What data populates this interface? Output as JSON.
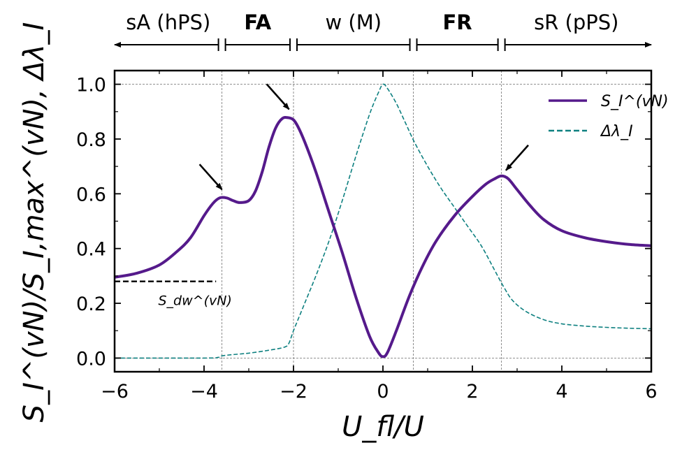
{
  "chart_data": {
    "type": "line",
    "xlabel": "U_fl/U",
    "ylabel": "S_I^(vN)/S_I,max^(vN), Δλ_I",
    "xlim": [
      -6,
      6
    ],
    "ylim": [
      -0.05,
      1.05
    ],
    "x_ticks": [
      -6,
      -4,
      -2,
      0,
      2,
      4,
      6
    ],
    "x_tick_labels": [
      "−6",
      "−4",
      "−2",
      "0",
      "2",
      "4",
      "6"
    ],
    "y_ticks": [
      0.0,
      0.2,
      0.4,
      0.6,
      0.8,
      1.0
    ],
    "y_tick_labels": [
      "0.0",
      "0.2",
      "0.4",
      "0.6",
      "0.8",
      "1.0"
    ],
    "vertical_lines_x": [
      -3.6,
      -2.0,
      0.68,
      2.65
    ],
    "series": [
      {
        "name": "S_I^(vN)",
        "style": "solid",
        "color": "#551a8b",
        "x": [
          -6,
          -5.5,
          -5,
          -4.6,
          -4.3,
          -4.0,
          -3.8,
          -3.65,
          -3.5,
          -3.35,
          -3.2,
          -3.0,
          -2.85,
          -2.7,
          -2.55,
          -2.4,
          -2.25,
          -2.12,
          -2.0,
          -1.9,
          -1.75,
          -1.5,
          -1.2,
          -0.9,
          -0.6,
          -0.3,
          -0.1,
          0.0,
          0.1,
          0.3,
          0.6,
          0.9,
          1.2,
          1.6,
          2.0,
          2.3,
          2.5,
          2.65,
          2.8,
          3.0,
          3.3,
          3.6,
          4.0,
          4.5,
          5.0,
          5.5,
          6.0
        ],
        "y": [
          0.295,
          0.31,
          0.34,
          0.39,
          0.44,
          0.52,
          0.565,
          0.585,
          0.585,
          0.575,
          0.568,
          0.575,
          0.61,
          0.68,
          0.77,
          0.84,
          0.875,
          0.878,
          0.87,
          0.845,
          0.79,
          0.68,
          0.53,
          0.38,
          0.22,
          0.08,
          0.02,
          0.005,
          0.02,
          0.1,
          0.23,
          0.34,
          0.43,
          0.52,
          0.59,
          0.635,
          0.655,
          0.665,
          0.655,
          0.615,
          0.555,
          0.505,
          0.465,
          0.44,
          0.425,
          0.415,
          0.41
        ]
      },
      {
        "name": "Δλ_I",
        "style": "dashed",
        "color": "#0e8080",
        "x": [
          -6,
          -4.0,
          -3.7,
          -3.6,
          -3.4,
          -3.0,
          -2.5,
          -2.2,
          -2.1,
          -2.0,
          -1.8,
          -1.5,
          -1.2,
          -0.9,
          -0.6,
          -0.3,
          -0.1,
          0.0,
          0.1,
          0.3,
          0.5,
          0.7,
          1.0,
          1.3,
          1.6,
          1.9,
          2.2,
          2.5,
          2.7,
          2.9,
          3.2,
          3.6,
          4.0,
          4.5,
          5.0,
          5.5,
          6.0
        ],
        "y": [
          0.0,
          0.0,
          0.002,
          0.008,
          0.012,
          0.018,
          0.03,
          0.04,
          0.055,
          0.1,
          0.18,
          0.3,
          0.43,
          0.58,
          0.74,
          0.89,
          0.97,
          1.0,
          0.985,
          0.93,
          0.86,
          0.79,
          0.7,
          0.62,
          0.55,
          0.48,
          0.41,
          0.32,
          0.26,
          0.21,
          0.17,
          0.14,
          0.125,
          0.117,
          0.112,
          0.109,
          0.107
        ]
      }
    ],
    "reference_line": {
      "label": "S_dw^(vN)",
      "y": 0.28,
      "x_range": [
        -6,
        -3.7
      ],
      "style": "dashed",
      "color": "#000000"
    },
    "arrows_point_to_x": [
      -3.6,
      -2.1,
      2.75
    ],
    "phase_bar": {
      "regions": [
        {
          "label": "sA (hPS)",
          "bold": false,
          "x_range": [
            -6,
            -3.6
          ]
        },
        {
          "label": "FA",
          "bold": true,
          "x_range": [
            -3.6,
            -2.0
          ]
        },
        {
          "label": "w (M)",
          "bold": false,
          "x_range": [
            -2.0,
            0.68
          ]
        },
        {
          "label": "FR",
          "bold": true,
          "x_range": [
            0.68,
            2.65
          ]
        },
        {
          "label": "sR (pPS)",
          "bold": false,
          "x_range": [
            2.65,
            6
          ]
        }
      ]
    },
    "legend": {
      "placement": "top-right",
      "entries": [
        "S_I^(vN)",
        "Δλ_I"
      ]
    }
  },
  "colors": {
    "entropy": "#551a8b",
    "gap": "#0e8080",
    "grid": "#808080"
  }
}
